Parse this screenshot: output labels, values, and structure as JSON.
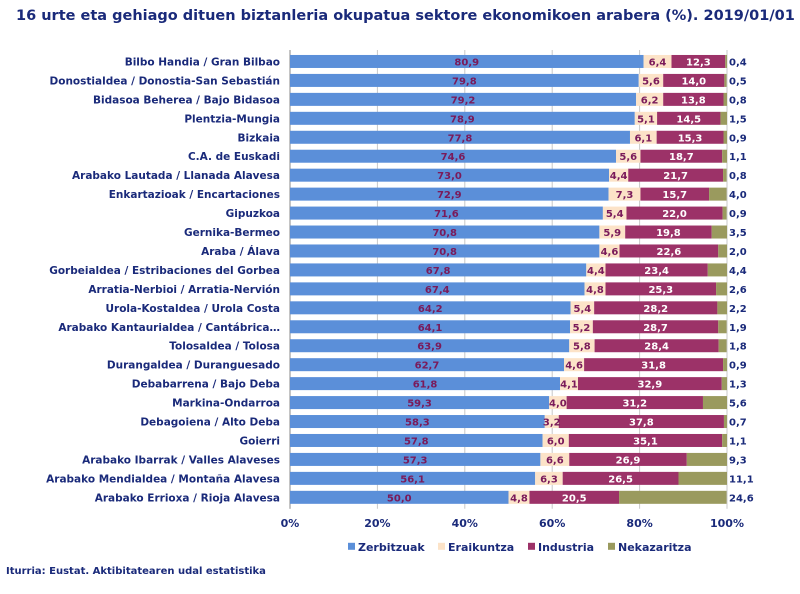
{
  "chart_data": {
    "type": "bar",
    "orientation": "horizontal",
    "stacked": "percent",
    "title": "16 urte eta gehiago dituen biztanleria okupatua sektore ekonomikoen arabera (%). 2019/01/01",
    "source": "Iturria: Eustat. Aktibitatearen udal estatistika",
    "xlim": [
      0,
      100
    ],
    "x_ticks": [
      "0%",
      "20%",
      "40%",
      "60%",
      "80%",
      "100%"
    ],
    "legend_position": "bottom",
    "categories": [
      "Bilbo Handia / Gran Bilbao",
      "Donostialdea / Donostia-San Sebastián",
      "Bidasoa Beherea / Bajo Bidasoa",
      "Plentzia-Mungia",
      "Bizkaia",
      "C.A. de Euskadi",
      "Arabako Lautada / Llanada Alavesa",
      "Enkartazioak / Encartaciones",
      "Gipuzkoa",
      "Gernika-Bermeo",
      "Araba / Álava",
      "Gorbeialdea / Estribaciones del Gorbea",
      "Arratia-Nerbioi / Arratia-Nervión",
      "Urola-Kostaldea / Urola Costa",
      "Arabako Kantaurialdea / Cantábrica…",
      "Tolosaldea / Tolosa",
      "Durangaldea / Duranguesado",
      "Debabarrena / Bajo Deba",
      "Markina-Ondarroa",
      "Debagoiena / Alto Deba",
      "Goierri",
      "Arabako Ibarrak / Valles Alaveses",
      "Arabako Mendialdea / Montaña Alavesa",
      "Arabako Errioxa / Rioja Alavesa"
    ],
    "series": [
      {
        "name": "Zerbitzuak",
        "color": "#5b8fd9",
        "label_color": "#7a1a5a",
        "values": [
          "80,9",
          "79,8",
          "79,2",
          "78,9",
          "77,8",
          "74,6",
          "73,0",
          "72,9",
          "71,6",
          "70,8",
          "70,8",
          "67,8",
          "67,4",
          "64,2",
          "64,1",
          "63,9",
          "62,7",
          "61,8",
          "59,3",
          "58,3",
          "57,8",
          "57,3",
          "56,1",
          "50,0"
        ]
      },
      {
        "name": "Eraikuntza",
        "color": "#fce3c8",
        "label_color": "#7a1a5a",
        "values": [
          "6,4",
          "5,6",
          "6,2",
          "5,1",
          "6,1",
          "5,6",
          "4,4",
          "7,3",
          "5,4",
          "5,9",
          "4,6",
          "4,4",
          "4,8",
          "5,4",
          "5,2",
          "5,8",
          "4,6",
          "4,1",
          "4,0",
          "3,2",
          "6,0",
          "6,6",
          "6,3",
          "4,8"
        ]
      },
      {
        "name": "Industria",
        "color": "#9c3268",
        "label_color": "#ffffff",
        "values": [
          "12,3",
          "14,0",
          "13,8",
          "14,5",
          "15,3",
          "18,7",
          "21,7",
          "15,7",
          "22,0",
          "19,8",
          "22,6",
          "23,4",
          "25,3",
          "28,2",
          "28,7",
          "28,4",
          "31,8",
          "32,9",
          "31,2",
          "37,8",
          "35,1",
          "26,9",
          "26,5",
          "20,5"
        ]
      },
      {
        "name": "Nekazaritza",
        "color": "#9a9a5e",
        "label_color": "#1a2a7a",
        "values": [
          "0,4",
          "0,5",
          "0,8",
          "1,5",
          "0,9",
          "1,1",
          "0,8",
          "4,0",
          "0,9",
          "3,5",
          "2,0",
          "4,4",
          "2,6",
          "2,2",
          "1,9",
          "1,8",
          "0,9",
          "1,3",
          "5,6",
          "0,7",
          "1,1",
          "9,3",
          "11,1",
          "24,6"
        ]
      }
    ]
  }
}
